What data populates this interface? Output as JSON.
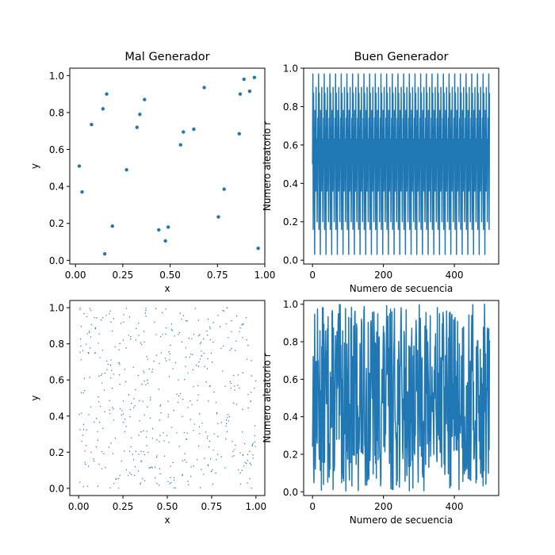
{
  "chart_data": [
    {
      "type": "scatter",
      "title": "Mal Generador",
      "xlabel": "x",
      "ylabel": "y",
      "xlim": [
        -0.03,
        1.0
      ],
      "ylim": [
        -0.02,
        1.04
      ],
      "xticks": [
        "0.00",
        "0.25",
        "0.50",
        "0.75",
        "1.00"
      ],
      "xtick_values": [
        0,
        0.25,
        0.5,
        0.75,
        1.0
      ],
      "yticks": [
        "0.0",
        "0.2",
        "0.4",
        "0.6",
        "0.8",
        "1.0"
      ],
      "ytick_values": [
        0,
        0.2,
        0.4,
        0.6,
        0.8,
        1.0
      ],
      "color": "#1f77b4",
      "marker_size": 2.2,
      "series": [
        {
          "x": [
            0.02,
            0.035,
            0.085,
            0.145,
            0.155,
            0.165,
            0.195,
            0.27,
            0.325,
            0.34,
            0.365,
            0.44,
            0.475,
            0.49,
            0.555,
            0.57,
            0.625,
            0.68,
            0.755,
            0.785,
            0.865,
            0.87,
            0.89,
            0.92,
            0.945,
            0.965
          ],
          "y": [
            0.51,
            0.37,
            0.735,
            0.82,
            0.035,
            0.9,
            0.185,
            0.49,
            0.72,
            0.79,
            0.87,
            0.165,
            0.105,
            0.18,
            0.625,
            0.695,
            0.71,
            0.935,
            0.235,
            0.385,
            0.685,
            0.9,
            0.98,
            0.915,
            0.99,
            0.065
          ]
        }
      ]
    },
    {
      "type": "line",
      "title": "Buen Generador",
      "xlabel": "Numero de secuencia",
      "ylabel": "Numero aleatorio r",
      "xlim": [
        -25,
        525
      ],
      "ylim": [
        -0.02,
        1.0
      ],
      "xticks": [
        "0",
        "200",
        "400"
      ],
      "xtick_values": [
        0,
        200,
        400
      ],
      "yticks": [
        "0.0",
        "0.2",
        "0.4",
        "0.6",
        "0.8",
        "1.0"
      ],
      "ytick_values": [
        0,
        0.2,
        0.4,
        0.6,
        0.8,
        1.0
      ],
      "color": "#1f77b4",
      "n_points": 500,
      "pattern": "periodic",
      "period": 16,
      "cycle": [
        0.5,
        0.97,
        0.16,
        0.87,
        0.26,
        0.69,
        0.03,
        0.78,
        0.58,
        0.36,
        0.9,
        0.42,
        0.63,
        0.2,
        0.45,
        0.74
      ],
      "series": [
        {
          "name": ""
        }
      ]
    },
    {
      "type": "scatter",
      "title": "",
      "xlabel": "x",
      "ylabel": "y",
      "xlim": [
        -0.05,
        1.05
      ],
      "ylim": [
        -0.04,
        1.04
      ],
      "xticks": [
        "0.00",
        "0.25",
        "0.50",
        "0.75",
        "1.00"
      ],
      "xtick_values": [
        0,
        0.25,
        0.5,
        0.75,
        1.0
      ],
      "yticks": [
        "0.0",
        "0.2",
        "0.4",
        "0.6",
        "0.8",
        "1.0"
      ],
      "ytick_values": [
        0,
        0.2,
        0.4,
        0.6,
        0.8,
        1.0
      ],
      "color": "#1f77b4",
      "marker_size": 0.7,
      "n_points": 500,
      "pattern": "uniform random in [0, 1]",
      "seed": 7,
      "series": [
        {
          "name": ""
        }
      ]
    },
    {
      "type": "line",
      "title": "",
      "xlabel": "Numero de secuencia",
      "ylabel": "Numero aleatorio r",
      "xlim": [
        -25,
        525
      ],
      "ylim": [
        -0.02,
        1.02
      ],
      "xticks": [
        "0",
        "200",
        "400"
      ],
      "xtick_values": [
        0,
        200,
        400
      ],
      "yticks": [
        "0.0",
        "0.2",
        "0.4",
        "0.6",
        "0.8",
        "1.0"
      ],
      "ytick_values": [
        0,
        0.2,
        0.4,
        0.6,
        0.8,
        1.0
      ],
      "color": "#1f77b4",
      "n_points": 500,
      "pattern": "uniform random in [0, 1]",
      "seed": 13,
      "series": [
        {
          "name": ""
        }
      ]
    }
  ]
}
